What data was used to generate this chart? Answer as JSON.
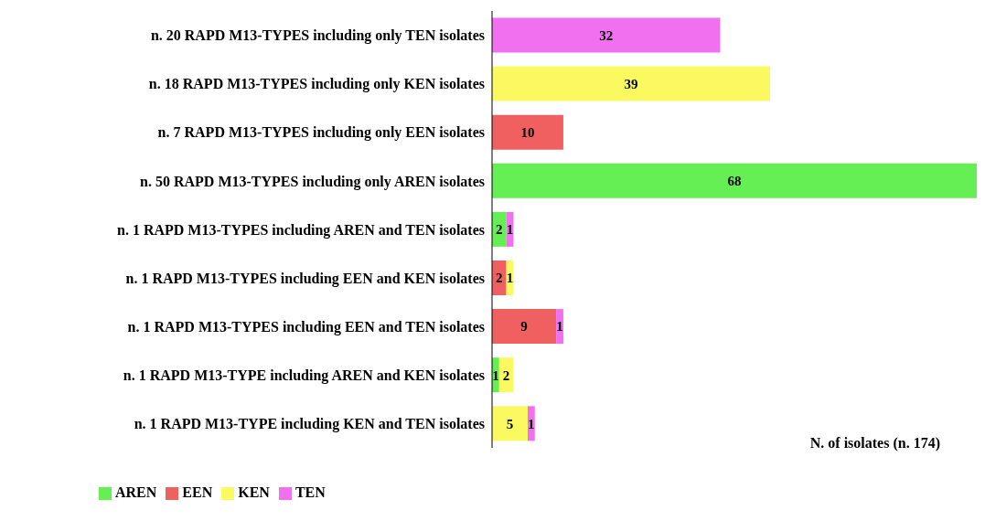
{
  "chart_data": {
    "type": "bar",
    "orientation": "horizontal",
    "stacked": true,
    "data_labels": true,
    "legend": "bottom left",
    "xlabel": "N. of isolates (n. 174)",
    "categories": [
      "n. 20 RAPD M13-TYPES including only TEN isolates",
      "n. 18 RAPD M13-TYPES including only KEN isolates",
      "n. 7 RAPD M13-TYPES including only EEN isolates",
      "n. 50 RAPD M13-TYPES including only AREN isolates",
      "n. 1 RAPD M13-TYPES including AREN and TEN isolates",
      "n. 1 RAPD M13-TYPES including EEN and KEN  isolates",
      "n. 1 RAPD M13-TYPES including EEN and TEN isolates",
      "n. 1 RAPD M13-TYPE including AREN and KEN isolates",
      "n. 1 RAPD M13-TYPE including KEN and TEN isolates"
    ],
    "series": [
      {
        "name": "AREN",
        "color": "#66ee55",
        "values": [
          null,
          null,
          null,
          68,
          2,
          null,
          null,
          1,
          null
        ]
      },
      {
        "name": "EEN",
        "color": "#f06060",
        "values": [
          null,
          null,
          10,
          null,
          null,
          2,
          9,
          null,
          null
        ]
      },
      {
        "name": "KEN",
        "color": "#fafa60",
        "values": [
          null,
          39,
          null,
          null,
          null,
          1,
          null,
          2,
          5
        ]
      },
      {
        "name": "TEN",
        "color": "#f070f0",
        "values": [
          32,
          null,
          null,
          null,
          1,
          null,
          1,
          null,
          1
        ]
      }
    ]
  }
}
